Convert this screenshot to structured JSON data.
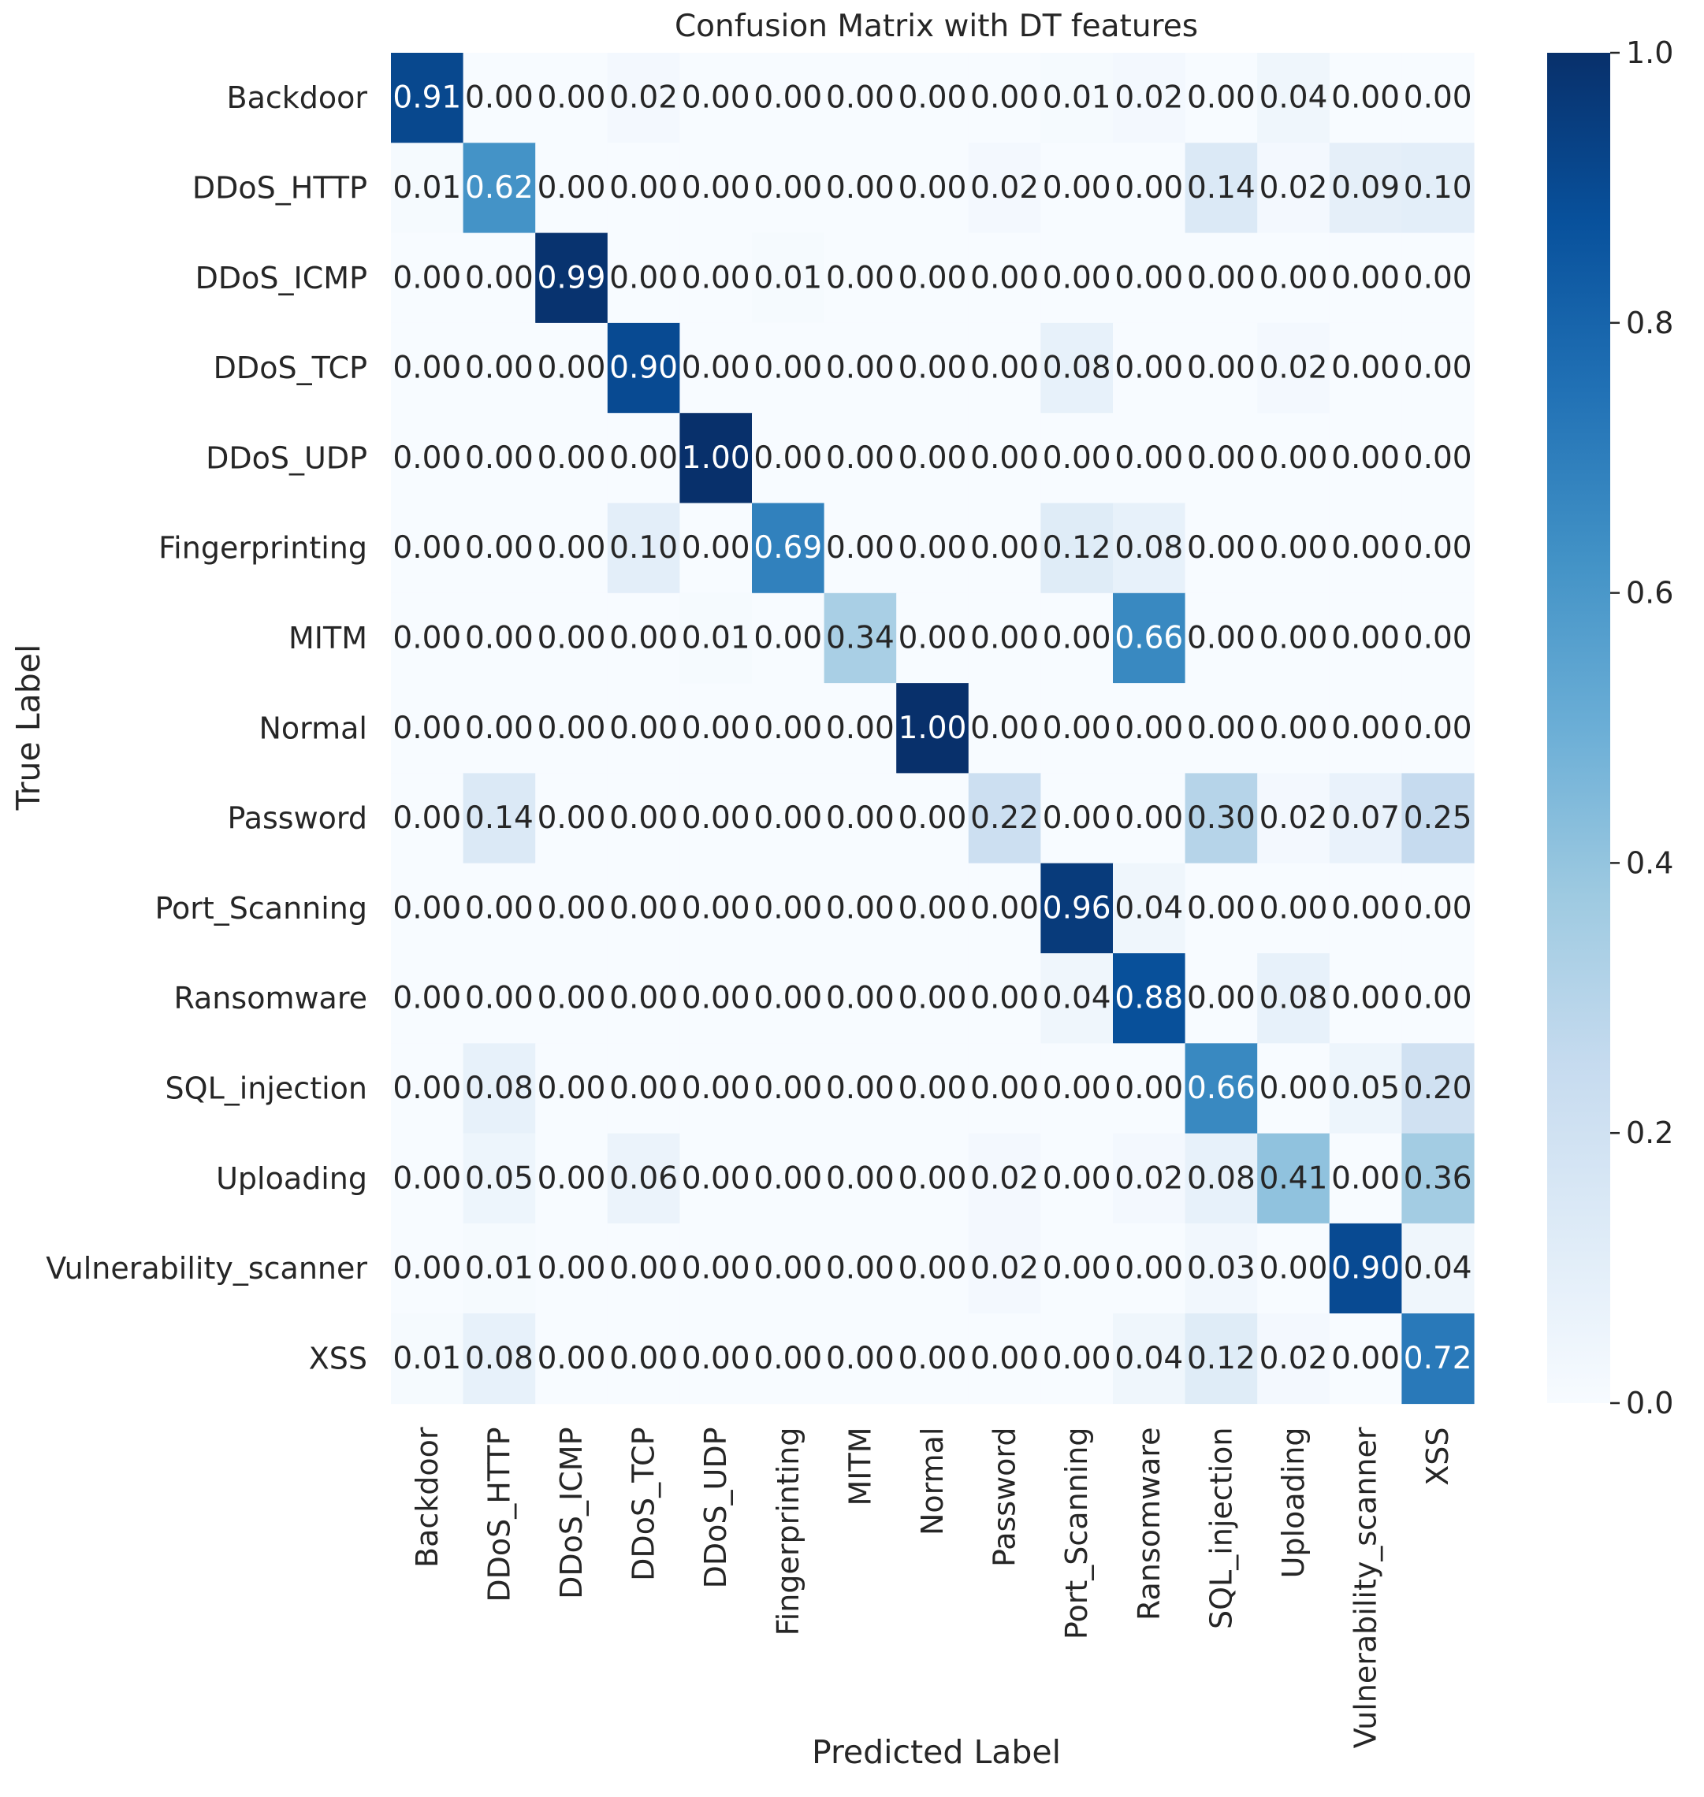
{
  "chart_data": {
    "type": "heatmap",
    "title": "Confusion Matrix with DT features",
    "xlabel": "Predicted Label",
    "ylabel": "True Label",
    "labels": [
      "Backdoor",
      "DDoS_HTTP",
      "DDoS_ICMP",
      "DDoS_TCP",
      "DDoS_UDP",
      "Fingerprinting",
      "MITM",
      "Normal",
      "Password",
      "Port_Scanning",
      "Ransomware",
      "SQL_injection",
      "Uploading",
      "Vulnerability_scanner",
      "XSS"
    ],
    "values": [
      [
        0.91,
        0.0,
        0.0,
        0.02,
        0.0,
        0.0,
        0.0,
        0.0,
        0.0,
        0.01,
        0.02,
        0.0,
        0.04,
        0.0,
        0.0
      ],
      [
        0.01,
        0.62,
        0.0,
        0.0,
        0.0,
        0.0,
        0.0,
        0.0,
        0.02,
        0.0,
        0.0,
        0.14,
        0.02,
        0.09,
        0.1
      ],
      [
        0.0,
        0.0,
        0.99,
        0.0,
        0.0,
        0.01,
        0.0,
        0.0,
        0.0,
        0.0,
        0.0,
        0.0,
        0.0,
        0.0,
        0.0
      ],
      [
        0.0,
        0.0,
        0.0,
        0.9,
        0.0,
        0.0,
        0.0,
        0.0,
        0.0,
        0.08,
        0.0,
        0.0,
        0.02,
        0.0,
        0.0
      ],
      [
        0.0,
        0.0,
        0.0,
        0.0,
        1.0,
        0.0,
        0.0,
        0.0,
        0.0,
        0.0,
        0.0,
        0.0,
        0.0,
        0.0,
        0.0
      ],
      [
        0.0,
        0.0,
        0.0,
        0.1,
        0.0,
        0.69,
        0.0,
        0.0,
        0.0,
        0.12,
        0.08,
        0.0,
        0.0,
        0.0,
        0.0
      ],
      [
        0.0,
        0.0,
        0.0,
        0.0,
        0.01,
        0.0,
        0.34,
        0.0,
        0.0,
        0.0,
        0.66,
        0.0,
        0.0,
        0.0,
        0.0
      ],
      [
        0.0,
        0.0,
        0.0,
        0.0,
        0.0,
        0.0,
        0.0,
        1.0,
        0.0,
        0.0,
        0.0,
        0.0,
        0.0,
        0.0,
        0.0
      ],
      [
        0.0,
        0.14,
        0.0,
        0.0,
        0.0,
        0.0,
        0.0,
        0.0,
        0.22,
        0.0,
        0.0,
        0.3,
        0.02,
        0.07,
        0.25
      ],
      [
        0.0,
        0.0,
        0.0,
        0.0,
        0.0,
        0.0,
        0.0,
        0.0,
        0.0,
        0.96,
        0.04,
        0.0,
        0.0,
        0.0,
        0.0
      ],
      [
        0.0,
        0.0,
        0.0,
        0.0,
        0.0,
        0.0,
        0.0,
        0.0,
        0.0,
        0.04,
        0.88,
        0.0,
        0.08,
        0.0,
        0.0
      ],
      [
        0.0,
        0.08,
        0.0,
        0.0,
        0.0,
        0.0,
        0.0,
        0.0,
        0.0,
        0.0,
        0.0,
        0.66,
        0.0,
        0.05,
        0.2
      ],
      [
        0.0,
        0.05,
        0.0,
        0.06,
        0.0,
        0.0,
        0.0,
        0.0,
        0.02,
        0.0,
        0.02,
        0.08,
        0.41,
        0.0,
        0.36
      ],
      [
        0.0,
        0.01,
        0.0,
        0.0,
        0.0,
        0.0,
        0.0,
        0.0,
        0.02,
        0.0,
        0.0,
        0.03,
        0.0,
        0.9,
        0.04
      ],
      [
        0.01,
        0.08,
        0.0,
        0.0,
        0.0,
        0.0,
        0.0,
        0.0,
        0.0,
        0.0,
        0.04,
        0.12,
        0.02,
        0.0,
        0.72
      ]
    ],
    "value_format": "2 decimals",
    "colormap": "Blues",
    "vmin": 0.0,
    "vmax": 1.0,
    "colorbar_ticks": [
      0.0,
      0.2,
      0.4,
      0.6,
      0.8,
      1.0
    ],
    "colorbar_tick_labels": [
      "0.0",
      "0.2",
      "0.4",
      "0.6",
      "0.8",
      "1.0"
    ]
  },
  "colors": {
    "text": "#262626",
    "cmap_stops": [
      "#f7fbff",
      "#deebf7",
      "#c6dbef",
      "#9ecae1",
      "#6baed6",
      "#4292c6",
      "#2171b5",
      "#08519c",
      "#08306b"
    ]
  }
}
